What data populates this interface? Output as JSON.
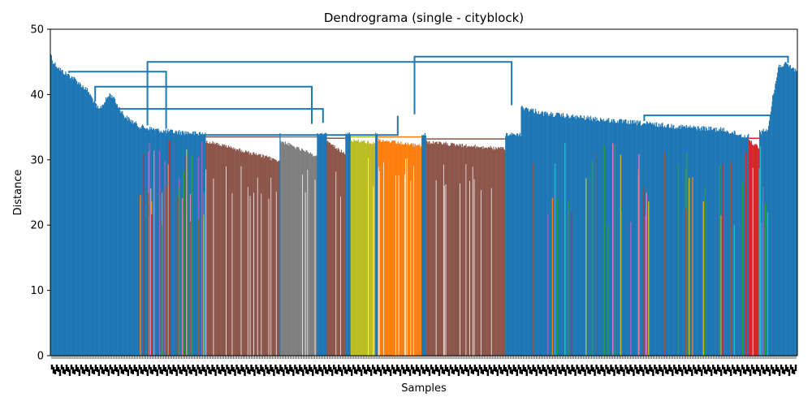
{
  "chart_data": {
    "type": "dendrogram",
    "title": "Dendrograma (single - cityblock)",
    "xlabel": "Samples",
    "ylabel": "Distance",
    "ylim": [
      0,
      50
    ],
    "yticks": [
      0,
      10,
      20,
      30,
      40,
      50
    ],
    "x_tick_labels_legible": false,
    "leaf_count_approx": 1000,
    "above_threshold_color": "#1f77b4",
    "top_merges": [
      {
        "left_start": 0.0,
        "left_end": 0.975,
        "right_start": 0.975,
        "right_end": 1.0,
        "height": 45.8
      },
      {
        "left_start": 0.0,
        "left_end": 0.26,
        "right_start": 0.26,
        "right_end": 0.975,
        "height": 45.0
      },
      {
        "left_start": 0.0,
        "left_end": 0.05,
        "right_start": 0.05,
        "right_end": 0.26,
        "height": 43.5
      },
      {
        "left_start": 0.05,
        "left_end": 0.07,
        "right_start": 0.07,
        "right_end": 0.63,
        "height": 41.2
      },
      {
        "left_start": 0.07,
        "left_end": 0.1,
        "right_start": 0.1,
        "right_end": 0.63,
        "height": 37.8
      },
      {
        "left_start": 0.1,
        "left_end": 0.3,
        "right_start": 0.3,
        "right_end": 0.63,
        "height": 33.8
      },
      {
        "left_start": 0.63,
        "left_end": 0.96,
        "right_start": 0.96,
        "right_end": 0.975,
        "height": 36.8
      }
    ],
    "profile": [
      {
        "x_start": 0.0,
        "x_end": 0.0,
        "height": 47.0
      },
      {
        "x_start": 0.003,
        "x_end": 0.003,
        "height": 45.5
      },
      {
        "x_start": 0.015,
        "x_end": 0.015,
        "height": 44.0
      },
      {
        "x_start": 0.03,
        "x_end": 0.03,
        "height": 43.0
      },
      {
        "x_start": 0.05,
        "x_end": 0.05,
        "height": 41.0
      },
      {
        "x_start": 0.065,
        "x_end": 0.065,
        "height": 38.0
      },
      {
        "x_start": 0.08,
        "x_end": 0.08,
        "height": 40.5
      },
      {
        "x_start": 0.1,
        "x_end": 0.1,
        "height": 37.0
      },
      {
        "x_start": 0.12,
        "x_end": 0.12,
        "height": 35.5
      },
      {
        "x_start": 0.15,
        "x_end": 0.15,
        "height": 34.8
      },
      {
        "x_start": 0.19,
        "x_end": 0.19,
        "height": 34.5
      },
      {
        "x_start": 0.21,
        "x_end": 0.21,
        "height": 34.0
      },
      {
        "x_start": 0.63,
        "x_end": 0.63,
        "height": 38.5
      },
      {
        "x_start": 0.66,
        "x_end": 0.66,
        "height": 37.5
      },
      {
        "x_start": 0.7,
        "x_end": 0.7,
        "height": 37.0
      },
      {
        "x_start": 0.76,
        "x_end": 0.76,
        "height": 36.3
      },
      {
        "x_start": 0.84,
        "x_end": 0.84,
        "height": 35.5
      },
      {
        "x_start": 0.9,
        "x_end": 0.9,
        "height": 35.0
      },
      {
        "x_start": 0.93,
        "x_end": 0.93,
        "height": 34.0
      },
      {
        "x_start": 0.96,
        "x_end": 0.96,
        "height": 35.0
      },
      {
        "x_start": 0.975,
        "x_end": 0.975,
        "height": 44.8
      },
      {
        "x_start": 0.985,
        "x_end": 0.985,
        "height": 45.0
      },
      {
        "x_start": 1.0,
        "x_end": 1.0,
        "height": 44.0
      }
    ],
    "clusters": [
      {
        "color": "#8c564b",
        "x_start": 0.208,
        "x_end": 0.307,
        "link_height": 33.5,
        "top_height": 33.2,
        "bottom_height": 29.8
      },
      {
        "color": "#7f7f7f",
        "x_start": 0.308,
        "x_end": 0.357,
        "link_height": 33.5,
        "top_height": 33.2,
        "bottom_height": 30.5
      },
      {
        "color": "#bcbd22",
        "x_start": 0.402,
        "x_end": 0.435,
        "link_height": 33.5,
        "top_height": 33.3,
        "bottom_height": 32.8
      },
      {
        "color": "#ff7f0e",
        "x_start": 0.438,
        "x_end": 0.497,
        "link_height": 33.5,
        "top_height": 33.3,
        "bottom_height": 32.3
      },
      {
        "color": "#8c564b",
        "x_start": 0.503,
        "x_end": 0.609,
        "link_height": 33.2,
        "top_height": 33.0,
        "bottom_height": 31.8
      },
      {
        "color": "#8c564b",
        "x_start": 0.37,
        "x_end": 0.395,
        "link_height": 33.3,
        "top_height": 33.1,
        "bottom_height": 31.0
      },
      {
        "color": "#d62728",
        "x_start": 0.935,
        "x_end": 0.949,
        "link_height": 33.3,
        "top_height": 33.2,
        "bottom_height": 32.0
      }
    ]
  }
}
